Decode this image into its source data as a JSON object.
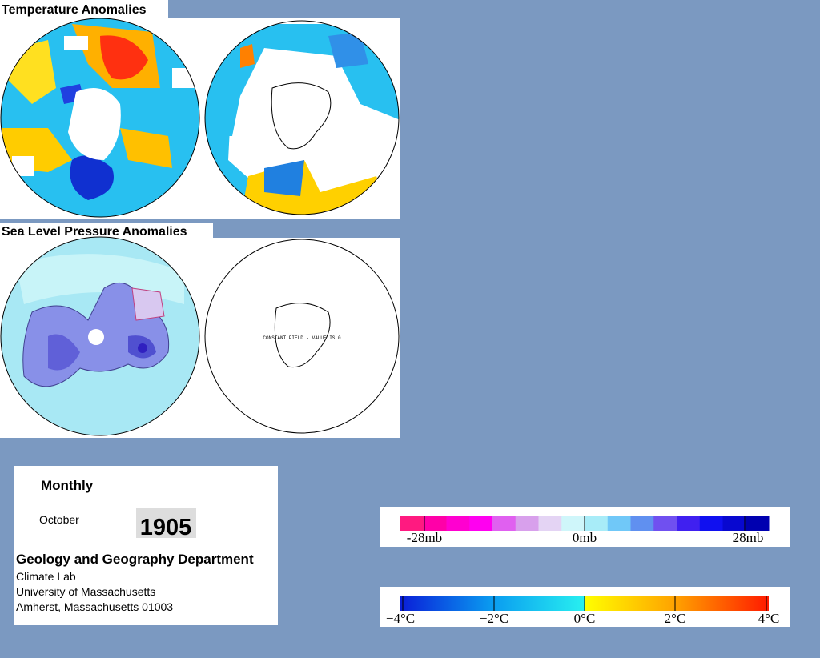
{
  "panels": {
    "temperature_title": "Temperature Anomalies",
    "pressure_title": "Sea Level Pressure Anomalies",
    "constant_field_note": "CONSTANT FIELD - VALUE IS 0"
  },
  "info": {
    "period": "Monthly",
    "month": "October",
    "year": "1905",
    "department": "Geology and Geography Department",
    "lines": [
      "Climate Lab",
      "University of Massachusetts",
      "Amherst, Massachusetts 01003"
    ]
  },
  "pressure_scale": {
    "labels": [
      "-28mb",
      "0mb",
      "28mb"
    ]
  },
  "temperature_scale": {
    "labels": [
      "−4°C",
      "−2°C",
      "0°C",
      "2°C",
      "4°C"
    ]
  }
}
